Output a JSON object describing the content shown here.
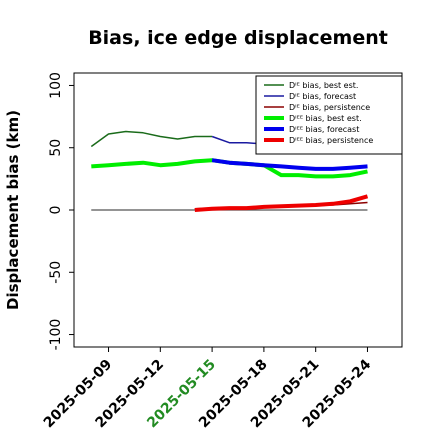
{
  "chart_data": {
    "type": "line",
    "title": "Bias, ice edge displacement",
    "xlabel": "",
    "ylabel": "Displacement bias (km)",
    "xlim": [
      "2025-05-07",
      "2025-05-26"
    ],
    "ylim": [
      -110,
      110
    ],
    "yticks": [
      100,
      50,
      0,
      -50,
      -100
    ],
    "xticks": [
      "2025-05-09",
      "2025-05-12",
      "2025-05-15",
      "2025-05-18",
      "2025-05-21",
      "2025-05-24"
    ],
    "highlighted_xtick": "2025-05-15",
    "highlight_color": "#228b22",
    "grid": false,
    "legend_position": "top-right",
    "series": [
      {
        "name": "Dᴵᴱ bias, best est.",
        "color": "#1a6b1a",
        "width": 1.5,
        "x": [
          "2025-05-08",
          "2025-05-09",
          "2025-05-10",
          "2025-05-11",
          "2025-05-12",
          "2025-05-13",
          "2025-05-14",
          "2025-05-15"
        ],
        "y": [
          51,
          61,
          63,
          62,
          59,
          57,
          59,
          59
        ]
      },
      {
        "name": "Dᴵᴱ bias, forecast",
        "color": "#1a1aa0",
        "width": 1.5,
        "x": [
          "2025-05-15",
          "2025-05-16",
          "2025-05-17",
          "2025-05-18",
          "2025-05-19",
          "2025-05-20",
          "2025-05-21",
          "2025-05-22",
          "2025-05-23",
          "2025-05-24"
        ],
        "y": [
          59,
          54,
          54,
          53,
          51,
          49,
          49,
          48,
          47,
          47
        ]
      },
      {
        "name": "Dᴵᴱ bias, persistence",
        "color": "#8b0000",
        "width": 1.5,
        "x": [
          "2025-05-14",
          "2025-05-15",
          "2025-05-16",
          "2025-05-17",
          "2025-05-18",
          "2025-05-19",
          "2025-05-20",
          "2025-05-21",
          "2025-05-22",
          "2025-05-23",
          "2025-05-24"
        ],
        "y": [
          1,
          1.5,
          1.5,
          1.5,
          2,
          2.5,
          3,
          3.5,
          4,
          5,
          6
        ]
      },
      {
        "name": "Dᴵᴱᴱ bias, best est.",
        "color": "#00ee00",
        "width": 4,
        "x": [
          "2025-05-08",
          "2025-05-09",
          "2025-05-10",
          "2025-05-11",
          "2025-05-12",
          "2025-05-13",
          "2025-05-14",
          "2025-05-15",
          "2025-05-16",
          "2025-05-17",
          "2025-05-18",
          "2025-05-19",
          "2025-05-20",
          "2025-05-21",
          "2025-05-22",
          "2025-05-23",
          "2025-05-24"
        ],
        "y": [
          35,
          36,
          37,
          38,
          36,
          37,
          39,
          40,
          38,
          37,
          36,
          28,
          28,
          27,
          27,
          28,
          31
        ]
      },
      {
        "name": "Dᴵᴱᴱ bias, forecast",
        "color": "#0000ee",
        "width": 4,
        "x": [
          "2025-05-15",
          "2025-05-16",
          "2025-05-17",
          "2025-05-18",
          "2025-05-19",
          "2025-05-20",
          "2025-05-21",
          "2025-05-22",
          "2025-05-23",
          "2025-05-24"
        ],
        "y": [
          40,
          38,
          37,
          36,
          35,
          34,
          33,
          33,
          34,
          35
        ]
      },
      {
        "name": "Dᴵᴱᴱ bias, persistence",
        "color": "#ee0000",
        "width": 4,
        "x": [
          "2025-05-14",
          "2025-05-15",
          "2025-05-16",
          "2025-05-17",
          "2025-05-18",
          "2025-05-19",
          "2025-05-20",
          "2025-05-21",
          "2025-05-22",
          "2025-05-23",
          "2025-05-24"
        ],
        "y": [
          0,
          1,
          1.5,
          1.5,
          2.5,
          3,
          3.5,
          4,
          5,
          7,
          11
        ]
      }
    ],
    "reference_line": {
      "y": 0,
      "x_start": "2025-05-08",
      "x_end": "2025-05-24",
      "color": "#555555"
    }
  }
}
